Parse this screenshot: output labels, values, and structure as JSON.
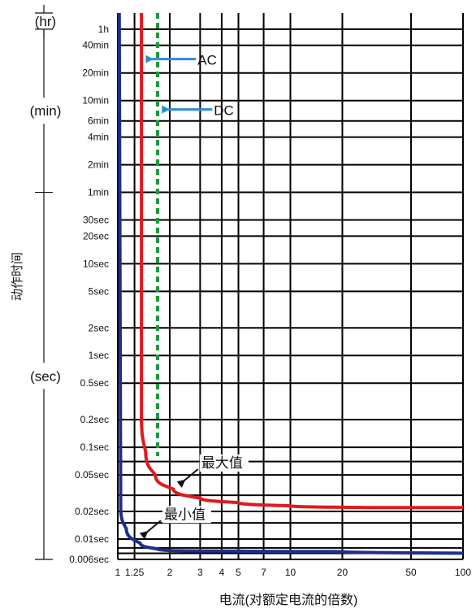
{
  "chart_data": {
    "type": "line",
    "title": "",
    "xlabel": "电流(对额定电流的倍数)",
    "ylabel": "动作时间",
    "x_scale": "log",
    "y_scale": "log",
    "xlim": [
      1,
      100
    ],
    "ylim_seconds": [
      0.006,
      5400
    ],
    "x_ticks": [
      {
        "value": 1,
        "label": "1"
      },
      {
        "value": 1.25,
        "label": "1.25"
      },
      {
        "value": 2,
        "label": "2"
      },
      {
        "value": 3,
        "label": "3"
      },
      {
        "value": 4,
        "label": "4"
      },
      {
        "value": 5,
        "label": "5"
      },
      {
        "value": 7,
        "label": "7"
      },
      {
        "value": 10,
        "label": "10"
      },
      {
        "value": 20,
        "label": "20"
      },
      {
        "value": 50,
        "label": "50"
      },
      {
        "value": 100,
        "label": "100"
      }
    ],
    "y_ticks": [
      {
        "value": 3600,
        "label": "1h"
      },
      {
        "value": 2400,
        "label": "40min"
      },
      {
        "value": 1200,
        "label": "20min"
      },
      {
        "value": 600,
        "label": "10min"
      },
      {
        "value": 360,
        "label": "6min"
      },
      {
        "value": 240,
        "label": "4min"
      },
      {
        "value": 120,
        "label": "2min"
      },
      {
        "value": 60,
        "label": "1min"
      },
      {
        "value": 30,
        "label": "30sec"
      },
      {
        "value": 20,
        "label": "20sec"
      },
      {
        "value": 10,
        "label": "10sec"
      },
      {
        "value": 5,
        "label": "5sec"
      },
      {
        "value": 2,
        "label": "2sec"
      },
      {
        "value": 1,
        "label": "1sec"
      },
      {
        "value": 0.5,
        "label": "0.5sec"
      },
      {
        "value": 0.2,
        "label": "0.2sec"
      },
      {
        "value": 0.1,
        "label": "0.1sec"
      },
      {
        "value": 0.05,
        "label": "0.05sec"
      },
      {
        "value": 0.02,
        "label": "0.02sec"
      },
      {
        "value": 0.01,
        "label": "0.01sec"
      },
      {
        "value": 0.006,
        "label": "0.006sec"
      }
    ],
    "extra_h_gridlines": [
      0.07,
      0.03,
      0.015,
      0.008,
      0.007
    ],
    "unit_groups": [
      {
        "label": "(hr)",
        "from": 3600,
        "to": 5400
      },
      {
        "label": "(min)",
        "from": 60,
        "to": 3600
      },
      {
        "label": "(sec)",
        "from": 0.006,
        "to": 60
      }
    ],
    "series": [
      {
        "color": "#e0191f",
        "style": "solid",
        "points": [
          [
            1.37,
            5400
          ],
          [
            1.37,
            0.22
          ],
          [
            1.45,
            0.09
          ],
          [
            1.65,
            0.05
          ],
          [
            2.1,
            0.035
          ],
          [
            3,
            0.028
          ],
          [
            5,
            0.025
          ],
          [
            10,
            0.023
          ],
          [
            30,
            0.022
          ],
          [
            100,
            0.022
          ]
        ]
      },
      {
        "color": "#1f2d8c",
        "style": "solid",
        "points": [
          [
            1.02,
            5400
          ],
          [
            1.04,
            0.022
          ],
          [
            1.12,
            0.013
          ],
          [
            1.35,
            0.009
          ],
          [
            1.7,
            0.0078
          ],
          [
            2,
            0.0075
          ],
          [
            5,
            0.0074
          ],
          [
            20,
            0.0073
          ],
          [
            100,
            0.007
          ]
        ]
      },
      {
        "color": "#1a9a3a",
        "style": "dashed",
        "points": [
          [
            1.7,
            5400
          ],
          [
            1.7,
            0.08
          ]
        ]
      }
    ],
    "annotations": [
      {
        "text": "AC",
        "arrow_tip": [
          1.45,
          1700
        ],
        "color": "#2a8fd0"
      },
      {
        "text": "DC",
        "arrow_tip": [
          1.8,
          480
        ],
        "color": "#2a8fd0"
      },
      {
        "text": "最大值",
        "arrow_tip": [
          2.3,
          0.04
        ],
        "color": "#111"
      },
      {
        "text": "最小值",
        "arrow_tip": [
          1.4,
          0.011
        ],
        "color": "#111"
      }
    ]
  }
}
